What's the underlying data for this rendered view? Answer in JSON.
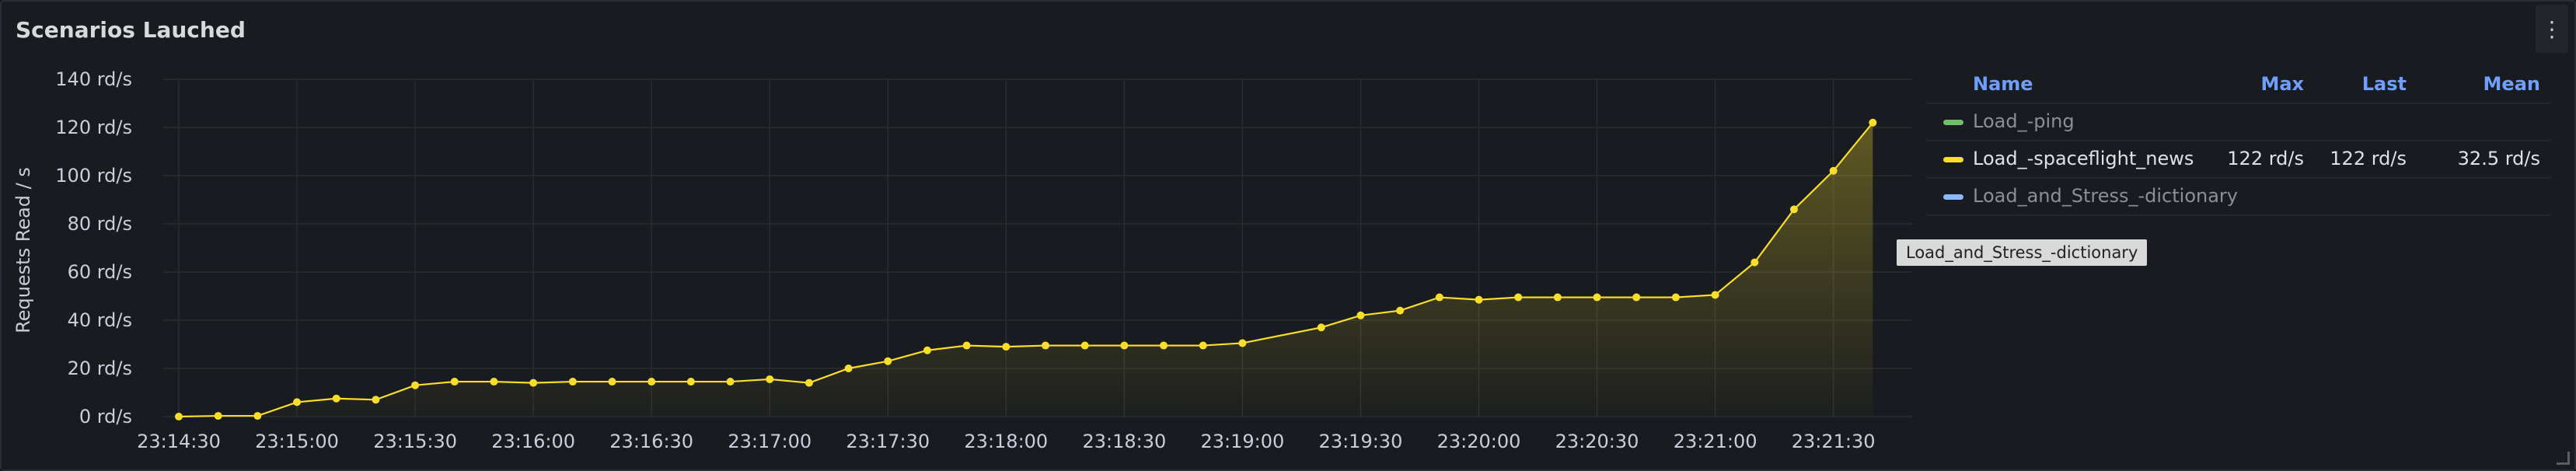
{
  "panel": {
    "title": "Scenarios Lauched",
    "menu_icon": "kebab-menu-icon"
  },
  "legend": {
    "headers": {
      "name": "Name",
      "max": "Max",
      "last": "Last",
      "mean": "Mean"
    },
    "items": [
      {
        "name": "Load_-ping",
        "color": "#73bf69",
        "max": "",
        "last": "",
        "mean": "",
        "active": false
      },
      {
        "name": "Load_-spaceflight_news",
        "color": "#fade2a",
        "max": "122 rd/s",
        "last": "122 rd/s",
        "mean": "32.5 rd/s",
        "active": true
      },
      {
        "name": "Load_and_Stress_-dictionary",
        "color": "#8ab8ff",
        "max": "",
        "last": "",
        "mean": "",
        "active": false
      }
    ]
  },
  "tooltip": "Load_and_Stress_-dictionary",
  "chart_data": {
    "type": "area",
    "ylabel": "Requests Read / s",
    "xlabel": "",
    "ylim": [
      0,
      140
    ],
    "y_ticks": [
      0,
      20,
      40,
      60,
      80,
      100,
      120,
      140
    ],
    "y_tick_labels": [
      "0 rd/s",
      "20 rd/s",
      "40 rd/s",
      "60 rd/s",
      "80 rd/s",
      "100 rd/s",
      "120 rd/s",
      "140 rd/s"
    ],
    "x_ticks": [
      "23:14:30",
      "23:15:00",
      "23:15:30",
      "23:16:00",
      "23:16:30",
      "23:17:00",
      "23:17:30",
      "23:18:00",
      "23:18:30",
      "23:19:00",
      "23:19:30",
      "23:20:00",
      "23:20:30",
      "23:21:00",
      "23:21:30"
    ],
    "x_range": [
      "23:14:30",
      "23:21:50"
    ],
    "grid": true,
    "series": [
      {
        "name": "Load_-spaceflight_news",
        "color": "#fade2a",
        "points": [
          [
            "23:14:30",
            0
          ],
          [
            "23:14:40",
            0.3
          ],
          [
            "23:14:50",
            0.3
          ],
          [
            "23:15:00",
            6
          ],
          [
            "23:15:10",
            7.5
          ],
          [
            "23:15:20",
            7
          ],
          [
            "23:15:30",
            13
          ],
          [
            "23:15:40",
            14.5
          ],
          [
            "23:15:50",
            14.5
          ],
          [
            "23:16:00",
            14
          ],
          [
            "23:16:10",
            14.5
          ],
          [
            "23:16:20",
            14.5
          ],
          [
            "23:16:30",
            14.5
          ],
          [
            "23:16:40",
            14.5
          ],
          [
            "23:16:50",
            14.5
          ],
          [
            "23:17:00",
            15.5
          ],
          [
            "23:17:10",
            14
          ],
          [
            "23:17:20",
            20
          ],
          [
            "23:17:30",
            23
          ],
          [
            "23:17:40",
            27.5
          ],
          [
            "23:17:50",
            29.5
          ],
          [
            "23:18:00",
            29
          ],
          [
            "23:18:10",
            29.5
          ],
          [
            "23:18:20",
            29.5
          ],
          [
            "23:18:30",
            29.5
          ],
          [
            "23:18:40",
            29.5
          ],
          [
            "23:18:50",
            29.5
          ],
          [
            "23:19:00",
            30.5
          ],
          [
            "23:19:20",
            37
          ],
          [
            "23:19:30",
            42
          ],
          [
            "23:19:40",
            44
          ],
          [
            "23:19:50",
            49.5
          ],
          [
            "23:20:00",
            48.5
          ],
          [
            "23:20:10",
            49.5
          ],
          [
            "23:20:20",
            49.5
          ],
          [
            "23:20:30",
            49.5
          ],
          [
            "23:20:40",
            49.5
          ],
          [
            "23:20:50",
            49.5
          ],
          [
            "23:21:00",
            50.5
          ],
          [
            "23:21:10",
            64
          ],
          [
            "23:21:20",
            86
          ],
          [
            "23:21:30",
            102
          ],
          [
            "23:21:40",
            122
          ]
        ]
      }
    ]
  }
}
